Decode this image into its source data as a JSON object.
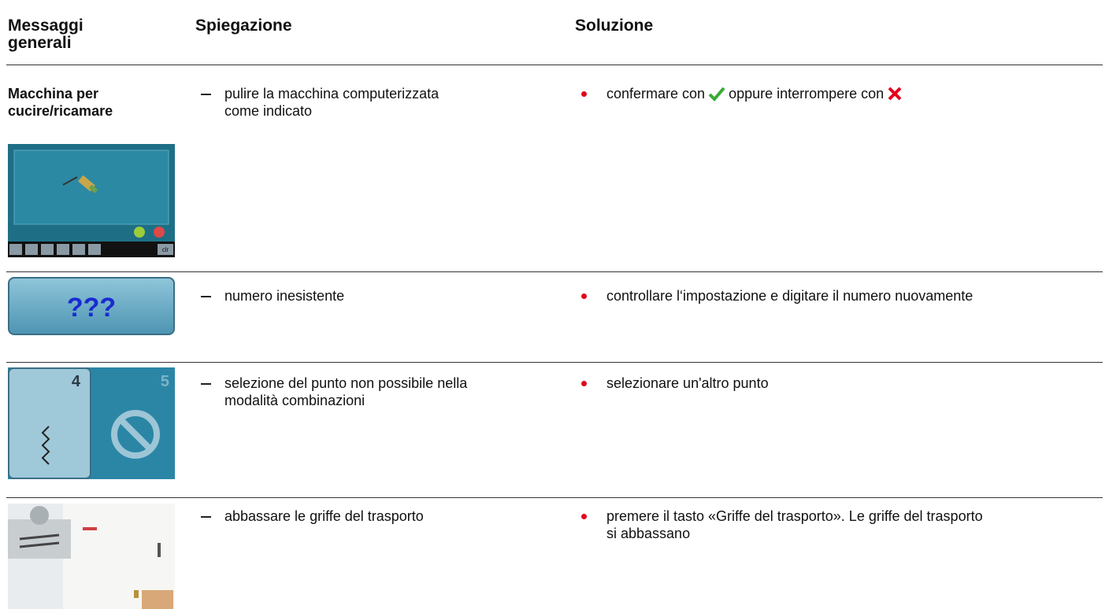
{
  "header": {
    "col1": [
      "Messaggi",
      "generali"
    ],
    "col2": "Spiegazione",
    "col3": "Soluzione"
  },
  "rows": [
    {
      "label": [
        "Macchina per",
        "cucire/ricamare"
      ],
      "image_text": "clr",
      "explanation": [
        "pulire la macchina computerizzata",
        "come indicato"
      ],
      "solution": [
        "confermare con",
        "oppure interrompere con"
      ]
    },
    {
      "image_text": "???",
      "explanation": [
        "numero inesistente"
      ],
      "solution": [
        "controllare l‘impostazione e digitare il numero nuovamente"
      ]
    },
    {
      "image_text": [
        "4",
        "5"
      ],
      "explanation": [
        "selezione del punto non possibile nella",
        "modalità combinazioni"
      ],
      "solution": [
        "selezionare un'altro punto"
      ]
    },
    {
      "explanation": [
        "abbassare le griffe del trasporto"
      ],
      "solution": [
        "premere il tasto «Griffe del trasporto». Le griffe del trasporto",
        "si abbassano"
      ]
    }
  ]
}
